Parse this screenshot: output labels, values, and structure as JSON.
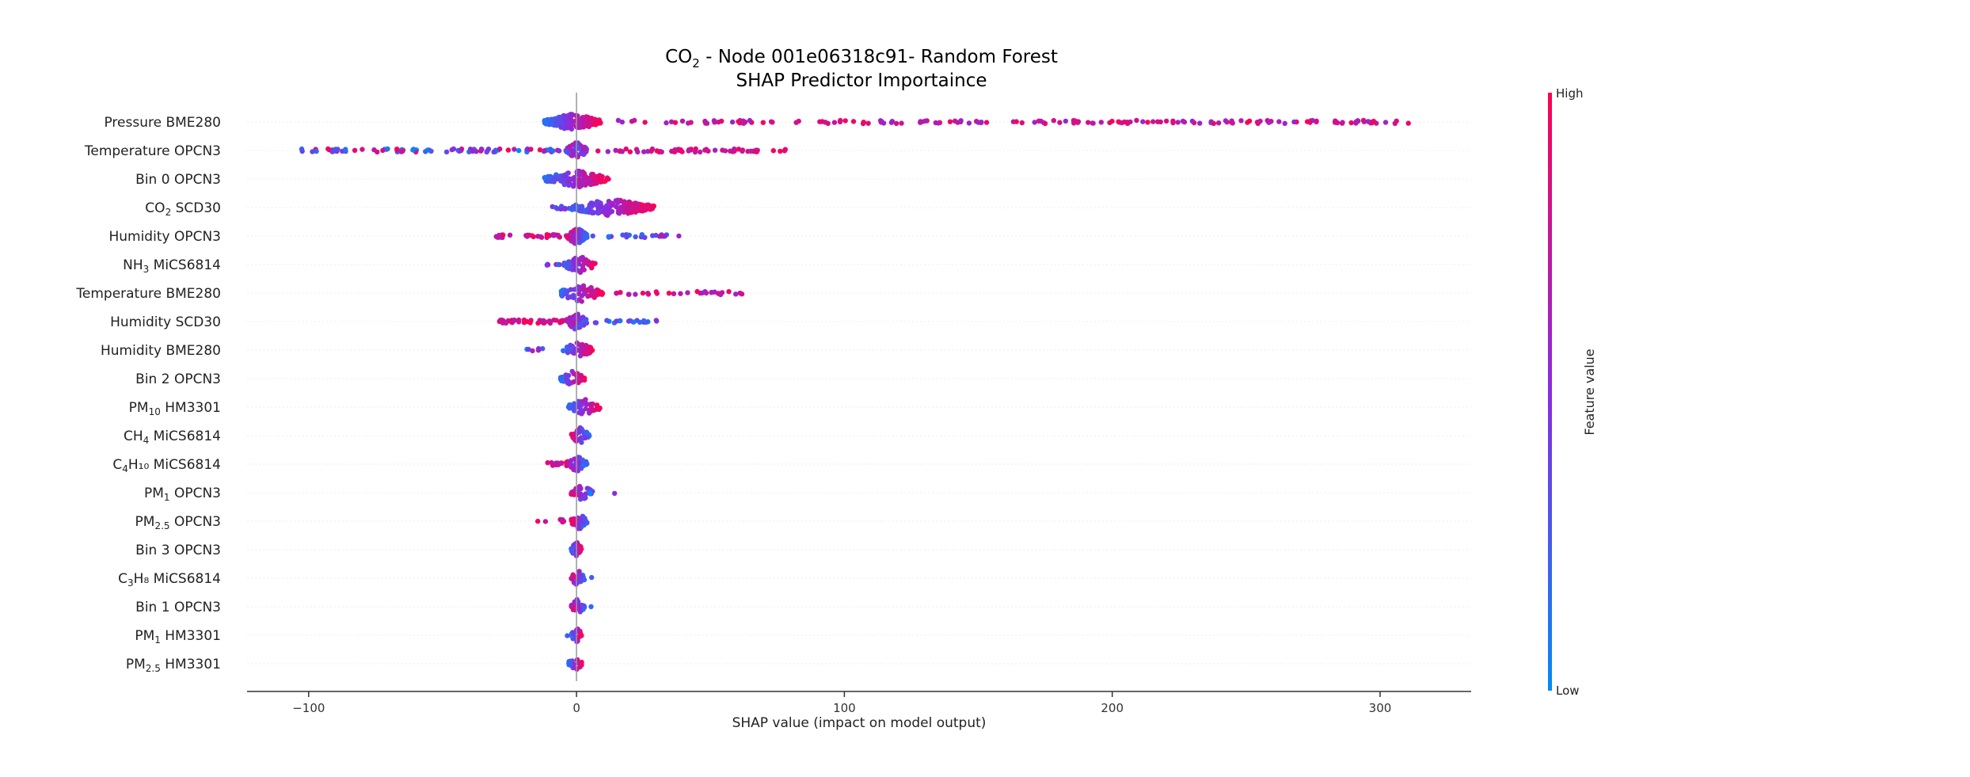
{
  "chart_data": {
    "type": "scatter",
    "subtype": "shap_beeswarm",
    "title_line1": "CO",
    "title_line1_sub": "2",
    "title_line1_rest": " - Node 001e06318c91- Random Forest",
    "title_line2": "SHAP Predictor Importaince",
    "xlabel": "SHAP value (impact on model output)",
    "xlim": [
      -123,
      334
    ],
    "xticks": [
      -100,
      0,
      100,
      200,
      300
    ],
    "xtick_labels": [
      "−100",
      "0",
      "100",
      "200",
      "300"
    ],
    "colorbar": {
      "label": "Feature value",
      "high_label": "High",
      "low_label": "Low",
      "low_color": "#008bfb",
      "mid_color": "#8a2be2",
      "high_color": "#ff0052"
    },
    "grid": false,
    "features": [
      {
        "label": "Pressure BME280",
        "base": "Pressure BME280",
        "sub": "",
        "rest": "",
        "spread": [
          -12,
          9
        ],
        "density": 190,
        "trend": 1,
        "tail_right": [
          15,
          313
        ],
        "tail_right_n": 170,
        "tail_left": [],
        "tail_left_n": 0
      },
      {
        "label": "Temperature OPCN3",
        "base": "Temperature OPCN3",
        "sub": "",
        "rest": "",
        "spread": [
          -4,
          4
        ],
        "density": 70,
        "trend": 0,
        "tail_right": [
          5,
          78
        ],
        "tail_right_n": 60,
        "tail_left": [
          -103,
          -6
        ],
        "tail_left_n": 90
      },
      {
        "label": "Bin 0 OPCN3",
        "base": "Bin 0 OPCN3",
        "sub": "",
        "rest": "",
        "spread": [
          -12,
          12
        ],
        "density": 150,
        "trend": 1,
        "tail_right": [],
        "tail_right_n": 0,
        "tail_left": [],
        "tail_left_n": 0
      },
      {
        "label": "CO2 SCD30",
        "base": "CO",
        "sub": "2",
        "rest": " SCD30",
        "spread": [
          -3,
          29
        ],
        "density": 170,
        "trend": 1,
        "tail_right": [],
        "tail_right_n": 0,
        "tail_left": [
          -9,
          -4
        ],
        "tail_left_n": 10
      },
      {
        "label": "Humidity OPCN3",
        "base": "Humidity OPCN3",
        "sub": "",
        "rest": "",
        "spread": [
          -4,
          4
        ],
        "density": 60,
        "trend": -1,
        "tail_right": [
          5,
          39
        ],
        "tail_right_n": 25,
        "tail_left": [
          -30,
          -5
        ],
        "tail_left_n": 30
      },
      {
        "label": "NH3 MiCS6814",
        "base": "NH",
        "sub": "3",
        "rest": " MiCS6814",
        "spread": [
          -5,
          7
        ],
        "density": 70,
        "trend": 1,
        "tail_right": [],
        "tail_right_n": 0,
        "tail_left": [
          -11,
          -6
        ],
        "tail_left_n": 6
      },
      {
        "label": "Temperature BME280",
        "base": "Temperature BME280",
        "sub": "",
        "rest": "",
        "spread": [
          -7,
          10
        ],
        "density": 70,
        "trend": 1,
        "tail_right": [
          11,
          62
        ],
        "tail_right_n": 30,
        "tail_left": [],
        "tail_left_n": 0
      },
      {
        "label": "Humidity SCD30",
        "base": "Humidity SCD30",
        "sub": "",
        "rest": "",
        "spread": [
          -4,
          4
        ],
        "density": 55,
        "trend": -1,
        "tail_right": [
          5,
          31
        ],
        "tail_right_n": 20,
        "tail_left": [
          -29,
          -5
        ],
        "tail_left_n": 40
      },
      {
        "label": "Humidity BME280",
        "base": "Humidity BME280",
        "sub": "",
        "rest": "",
        "spread": [
          -5,
          6
        ],
        "density": 50,
        "trend": 1,
        "tail_right": [],
        "tail_right_n": 0,
        "tail_left": [
          -19,
          -12
        ],
        "tail_left_n": 6
      },
      {
        "label": "Bin 2 OPCN3",
        "base": "Bin 2 OPCN3",
        "sub": "",
        "rest": "",
        "spread": [
          -6,
          3
        ],
        "density": 40,
        "trend": 1,
        "tail_right": [],
        "tail_right_n": 0,
        "tail_left": [],
        "tail_left_n": 0
      },
      {
        "label": "PM10 HM3301",
        "base": "PM",
        "sub": "10",
        "rest": " HM3301",
        "spread": [
          -3,
          9
        ],
        "density": 45,
        "trend": 1,
        "tail_right": [],
        "tail_right_n": 0,
        "tail_left": [],
        "tail_left_n": 0
      },
      {
        "label": "CH4 MiCS6814",
        "base": "CH",
        "sub": "4",
        "rest": " MiCS6814",
        "spread": [
          -2,
          5
        ],
        "density": 35,
        "trend": -1,
        "tail_right": [],
        "tail_right_n": 0,
        "tail_left": [],
        "tail_left_n": 0
      },
      {
        "label": "C4H10 MiCS6814",
        "base": "C",
        "sub": "4",
        "rest": "H₁₀ MiCS6814",
        "spread": [
          -4,
          4
        ],
        "density": 40,
        "trend": -1,
        "tail_right": [],
        "tail_right_n": 0,
        "tail_left": [
          -14,
          -5
        ],
        "tail_left_n": 12
      },
      {
        "label": "PM1 OPCN3",
        "base": "PM",
        "sub": "1",
        "rest": " OPCN3",
        "spread": [
          -2,
          6
        ],
        "density": 40,
        "trend": -1,
        "tail_right": [
          14,
          15
        ],
        "tail_right_n": 1,
        "tail_left": [],
        "tail_left_n": 0
      },
      {
        "label": "PM2.5 OPCN3",
        "base": "PM",
        "sub": "2.5",
        "rest": " OPCN3",
        "spread": [
          -2,
          4
        ],
        "density": 40,
        "trend": -1,
        "tail_right": [],
        "tail_right_n": 0,
        "tail_left": [
          -17,
          -4
        ],
        "tail_left_n": 6
      },
      {
        "label": "Bin 3 OPCN3",
        "base": "Bin 3 OPCN3",
        "sub": "",
        "rest": "",
        "spread": [
          -2,
          2
        ],
        "density": 30,
        "trend": 1,
        "tail_right": [],
        "tail_right_n": 0,
        "tail_left": [],
        "tail_left_n": 0
      },
      {
        "label": "C3H8 MiCS6814",
        "base": "C",
        "sub": "3",
        "rest": "H₈ MiCS6814",
        "spread": [
          -2,
          3
        ],
        "density": 30,
        "trend": -1,
        "tail_right": [
          5,
          6
        ],
        "tail_right_n": 1,
        "tail_left": [],
        "tail_left_n": 0
      },
      {
        "label": "Bin 1 OPCN3",
        "base": "Bin 1 OPCN3",
        "sub": "",
        "rest": "",
        "spread": [
          -2,
          3
        ],
        "density": 30,
        "trend": -1,
        "tail_right": [
          5,
          6
        ],
        "tail_right_n": 1,
        "tail_left": [],
        "tail_left_n": 0
      },
      {
        "label": "PM1 HM3301",
        "base": "PM",
        "sub": "1",
        "rest": " HM3301",
        "spread": [
          -2,
          2
        ],
        "density": 25,
        "trend": 1,
        "tail_right": [],
        "tail_right_n": 0,
        "tail_left": [
          -4,
          -3
        ],
        "tail_left_n": 1
      },
      {
        "label": "PM2.5 HM3301",
        "base": "PM",
        "sub": "2.5",
        "rest": " HM3301",
        "spread": [
          -3,
          2
        ],
        "density": 30,
        "trend": 1,
        "tail_right": [],
        "tail_right_n": 0,
        "tail_left": [],
        "tail_left_n": 0
      }
    ]
  }
}
